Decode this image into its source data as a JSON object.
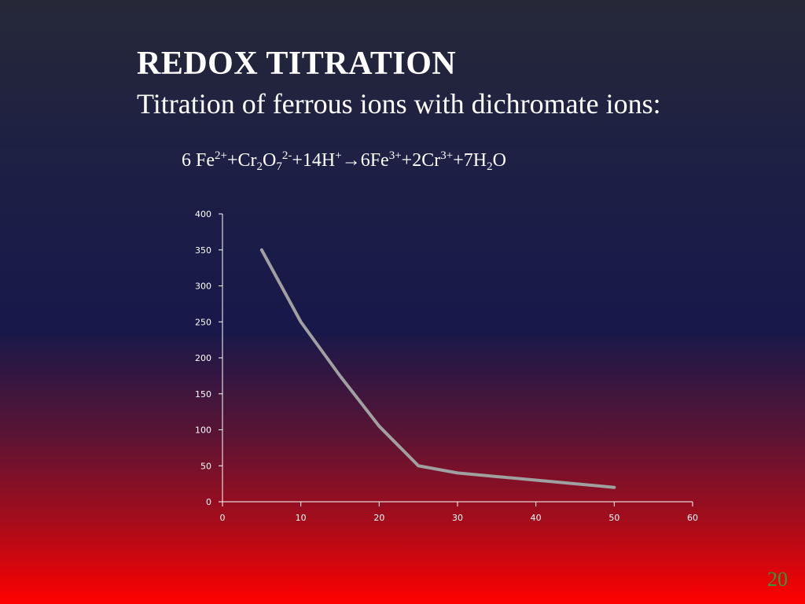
{
  "slide": {
    "title": "REDOX TITRATION",
    "subtitle": "Titration of ferrous ions with dichromate ions:",
    "page_number": "20"
  },
  "equation": {
    "parts": [
      {
        "t": "6 Fe"
      },
      {
        "sup": "2+"
      },
      {
        "t": "+Cr"
      },
      {
        "sub": "2"
      },
      {
        "t": "O"
      },
      {
        "sub": "7"
      },
      {
        "sup": "2-"
      },
      {
        "t": "+14H"
      },
      {
        "sup": "+"
      },
      {
        "t": "→6Fe"
      },
      {
        "sup": "3+"
      },
      {
        "t": "+2Cr"
      },
      {
        "sup": "3+"
      },
      {
        "t": "+7H"
      },
      {
        "sub": "2"
      },
      {
        "t": "O"
      }
    ]
  },
  "chart_data": {
    "type": "line",
    "x": [
      5,
      10,
      15,
      20,
      25,
      30,
      40,
      50
    ],
    "series": [
      {
        "values": [
          350,
          250,
          175,
          105,
          50,
          40,
          30,
          20
        ],
        "color": "#a0a0a0"
      }
    ],
    "xlim": [
      0,
      60
    ],
    "ylim": [
      0,
      400
    ],
    "xticks": [
      "0",
      "10",
      "20",
      "30",
      "40",
      "50",
      "60"
    ],
    "yticks": [
      "0",
      "50",
      "100",
      "150",
      "200",
      "250",
      "300",
      "350",
      "400"
    ],
    "axis_color": "#ffffff",
    "grid": false,
    "title": "",
    "xlabel": "",
    "ylabel": ""
  }
}
